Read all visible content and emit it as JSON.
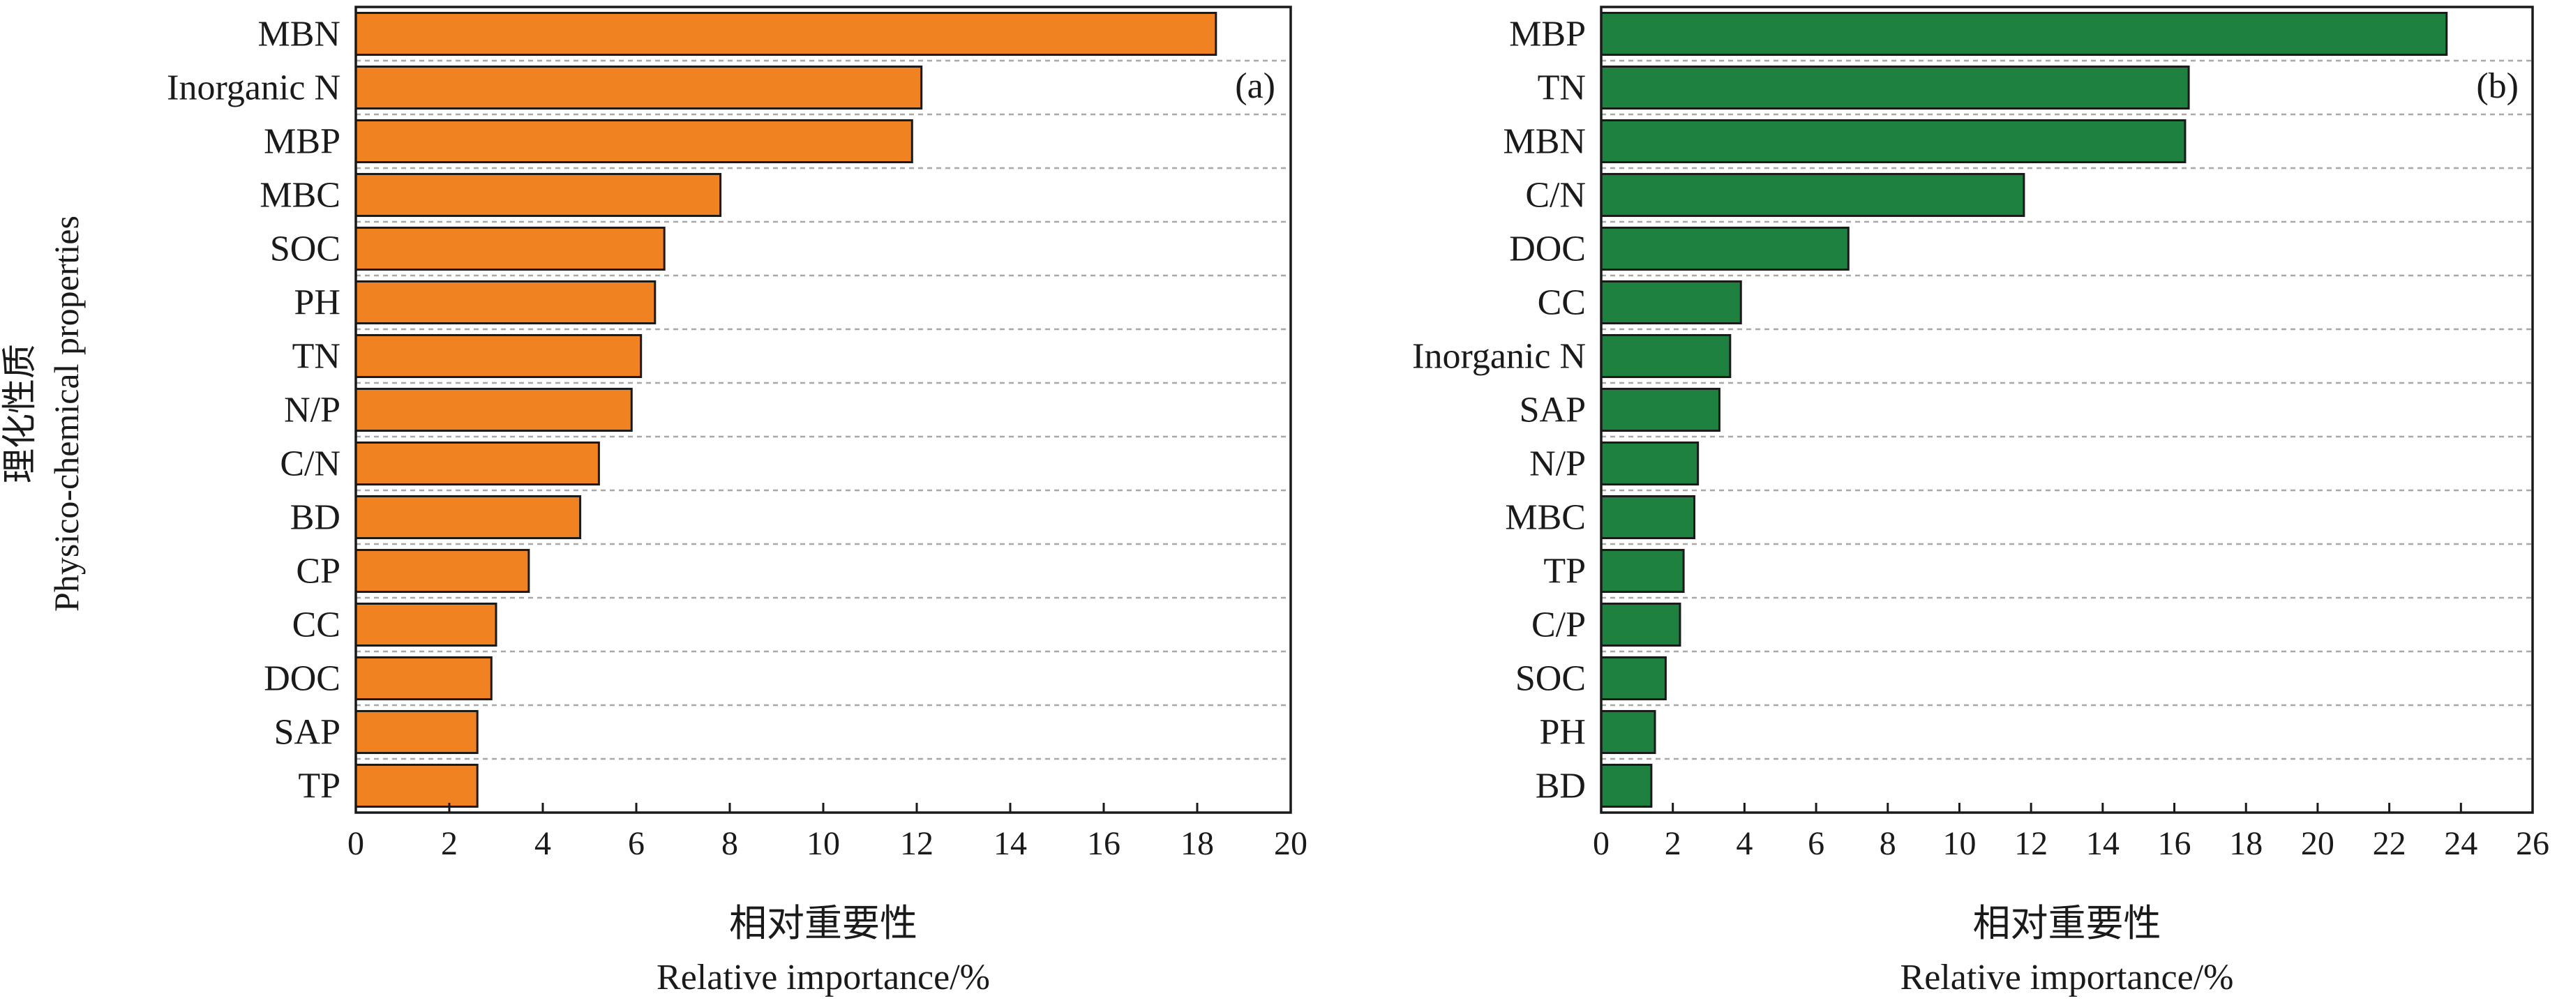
{
  "y_axis_title": {
    "zh": "理化性质",
    "en": "Physico-chemical properties"
  },
  "chart_data": [
    {
      "type": "bar",
      "orientation": "horizontal",
      "panel_label": "(a)",
      "color": "#F08221",
      "xlabel_zh": "相对重要性",
      "xlabel": "Relative importance/%",
      "xlim": [
        0,
        20
      ],
      "x_ticks": [
        0,
        2,
        4,
        6,
        8,
        10,
        12,
        14,
        16,
        18,
        20
      ],
      "grid": "horizontal dashed",
      "categories": [
        "MBN",
        "Inorganic N",
        "MBP",
        "MBC",
        "SOC",
        "PH",
        "TN",
        "N/P",
        "C/N",
        "BD",
        "CP",
        "CC",
        "DOC",
        "SAP",
        "TP"
      ],
      "values": [
        18.4,
        12.1,
        11.9,
        7.8,
        6.6,
        6.4,
        6.1,
        5.9,
        5.2,
        4.8,
        3.7,
        3.0,
        2.9,
        2.6,
        2.6
      ]
    },
    {
      "type": "bar",
      "orientation": "horizontal",
      "panel_label": "(b)",
      "color": "#1E8140",
      "xlabel_zh": "相对重要性",
      "xlabel": "Relative importance/%",
      "xlim": [
        0,
        26
      ],
      "x_ticks": [
        0,
        2,
        4,
        6,
        8,
        10,
        12,
        14,
        16,
        18,
        20,
        22,
        24,
        26
      ],
      "grid": "horizontal dashed",
      "categories": [
        "MBP",
        "TN",
        "MBN",
        "C/N",
        "DOC",
        "CC",
        "Inorganic N",
        "SAP",
        "N/P",
        "MBC",
        "TP",
        "C/P",
        "SOC",
        "PH",
        "BD"
      ],
      "values": [
        23.6,
        16.4,
        16.3,
        11.8,
        6.9,
        3.9,
        3.6,
        3.3,
        2.7,
        2.6,
        2.3,
        2.2,
        1.8,
        1.5,
        1.4
      ]
    }
  ]
}
